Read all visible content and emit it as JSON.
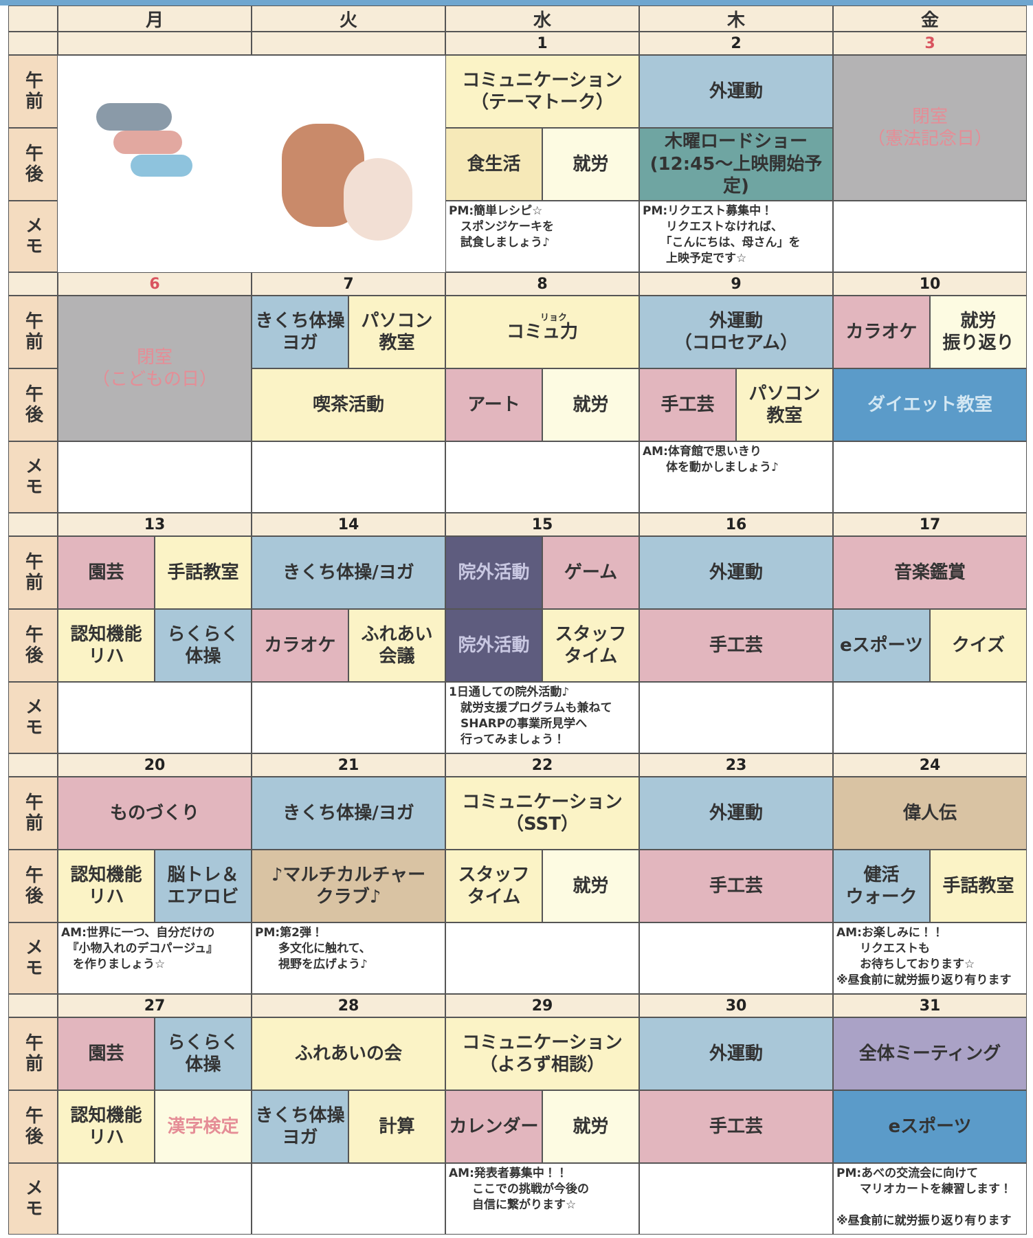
{
  "header": {
    "weekdays": [
      "月",
      "火",
      "水",
      "木",
      "金"
    ],
    "row_labels": [
      "午前",
      "午後",
      "メモ"
    ]
  },
  "weeks": [
    {
      "dates": [
        null,
        null,
        1,
        2,
        3
      ],
      "date_colors": [
        "#222",
        "#222",
        "#222",
        "#222",
        "#d9545f"
      ],
      "days": [
        {},
        {},
        {
          "am": [
            {
              "text": "コミュニケーション\n（テーマトーク）",
              "color": "#fbf3c6"
            }
          ],
          "pm": [
            {
              "text": "食生活",
              "color": "#f6e9b8"
            },
            {
              "text": "就労",
              "color": "#fdfbe2"
            }
          ],
          "memo": "PM:簡単レシピ☆\n　スポンジケーキを\n　試食しましょう♪"
        },
        {
          "am": [
            {
              "text": "外運動",
              "color": "#a9c7d8"
            }
          ],
          "pm": [
            {
              "text": "木曜ロードショー\n(12:45～上映開始予定)",
              "color": "#6fa5a2"
            }
          ],
          "memo": "PM:リクエスト募集中！\n　　リクエストなければ、\n　　「こんにちは、母さん」を\n　　上映予定です☆"
        },
        {
          "closed": {
            "text": "閉室\n（憲法記念日）",
            "color": "#b4b3b4",
            "text_color": "#e58d96"
          }
        }
      ]
    },
    {
      "dates": [
        6,
        7,
        8,
        9,
        10
      ],
      "date_colors": [
        "#d9545f",
        "#222",
        "#222",
        "#222",
        "#222"
      ],
      "days": [
        {
          "closed": {
            "text": "閉室\n（こどもの日）",
            "color": "#b4b3b4",
            "text_color": "#e58d96"
          }
        },
        {
          "am": [
            {
              "text": "きくち体操\nヨガ",
              "color": "#a9c7d8"
            },
            {
              "text": "パソコン\n教室",
              "color": "#fbf3c6"
            }
          ],
          "pm": [
            {
              "text": "喫茶活動",
              "color": "#fbf3c6"
            }
          ]
        },
        {
          "am": [
            {
              "text": "コミュ力",
              "ruby": "リョク",
              "color": "#fbf3c6"
            }
          ],
          "pm": [
            {
              "text": "アート",
              "color": "#e2b6be"
            },
            {
              "text": "就労",
              "color": "#fdfbe2"
            }
          ]
        },
        {
          "am": [
            {
              "text": "外運動\n（コロセアム）",
              "color": "#a9c7d8"
            }
          ],
          "pm": [
            {
              "text": "手工芸",
              "color": "#e2b6be"
            },
            {
              "text": "パソコン\n教室",
              "color": "#fbf3c6"
            }
          ],
          "memo": "AM:体育館で思いきり\n　　体を動かしましょう♪"
        },
        {
          "am": [
            {
              "text": "カラオケ",
              "color": "#e2b6be"
            },
            {
              "text": "就労\n振り返り",
              "color": "#fdfbe2"
            }
          ],
          "pm": [
            {
              "text": "ダイエット教室",
              "color": "#5b9bc9",
              "text_color": "#d3e7f3"
            }
          ]
        }
      ]
    },
    {
      "dates": [
        13,
        14,
        15,
        16,
        17
      ],
      "date_colors": [
        "#222",
        "#222",
        "#222",
        "#222",
        "#222"
      ],
      "days": [
        {
          "am": [
            {
              "text": "園芸",
              "color": "#e2b6be"
            },
            {
              "text": "手話教室",
              "color": "#fbf3c6"
            }
          ],
          "pm": [
            {
              "text": "認知機能\nリハ",
              "color": "#fbf3c6"
            },
            {
              "text": "らくらく\n体操",
              "color": "#a9c7d8"
            }
          ]
        },
        {
          "am": [
            {
              "text": "きくち体操/ヨガ",
              "color": "#a9c7d8"
            }
          ],
          "pm": [
            {
              "text": "カラオケ",
              "color": "#e2b6be"
            },
            {
              "text": "ふれあい\n会議",
              "color": "#fbf3c6"
            }
          ]
        },
        {
          "am": [
            {
              "text": "院外活動",
              "color": "#5e5c7e",
              "text_color": "#c9c8e2"
            },
            {
              "text": "ゲーム",
              "color": "#e2b6be"
            }
          ],
          "pm": [
            {
              "text": "院外活動",
              "color": "#5e5c7e",
              "text_color": "#c9c8e2"
            },
            {
              "text": "スタッフ\nタイム",
              "color": "#fbf3c6"
            }
          ],
          "memo": "1日通しての院外活動♪\n　就労支援プログラムも兼ねて\n　SHARPの事業所見学へ\n　行ってみましょう！"
        },
        {
          "am": [
            {
              "text": "外運動",
              "color": "#a9c7d8"
            }
          ],
          "pm": [
            {
              "text": "手工芸",
              "color": "#e2b6be"
            }
          ]
        },
        {
          "am": [
            {
              "text": "音楽鑑賞",
              "color": "#e2b6be"
            }
          ],
          "pm": [
            {
              "text": "eスポーツ",
              "color": "#a9c7d8"
            },
            {
              "text": "クイズ",
              "color": "#fbf3c6"
            }
          ]
        }
      ]
    },
    {
      "dates": [
        20,
        21,
        22,
        23,
        24
      ],
      "date_colors": [
        "#222",
        "#222",
        "#222",
        "#222",
        "#222"
      ],
      "days": [
        {
          "am": [
            {
              "text": "ものづくり",
              "color": "#e2b6be"
            }
          ],
          "pm": [
            {
              "text": "認知機能\nリハ",
              "color": "#fbf3c6"
            },
            {
              "text": "脳トレ＆\nエアロビ",
              "color": "#a9c7d8"
            }
          ],
          "memo": "AM:世界に一つ、自分だけの\n　『小物入れのデコパージュ』\n　を作りましょう☆"
        },
        {
          "am": [
            {
              "text": "きくち体操/ヨガ",
              "color": "#a9c7d8"
            }
          ],
          "pm": [
            {
              "text": "♪マルチカルチャー\nクラブ♪",
              "color": "#d9c3a3"
            }
          ],
          "memo": "PM:第2弾！\n　　多文化に触れて、\n　　視野を広げよう♪"
        },
        {
          "am": [
            {
              "text": "コミュニケーション\n（SST）",
              "color": "#fbf3c6"
            }
          ],
          "pm": [
            {
              "text": "スタッフ\nタイム",
              "color": "#fbf3c6"
            },
            {
              "text": "就労",
              "color": "#fdfbe2"
            }
          ]
        },
        {
          "am": [
            {
              "text": "外運動",
              "color": "#a9c7d8"
            }
          ],
          "pm": [
            {
              "text": "手工芸",
              "color": "#e2b6be"
            }
          ]
        },
        {
          "am": [
            {
              "text": "偉人伝",
              "color": "#d9c3a3"
            }
          ],
          "pm": [
            {
              "text": "健活\nウォーク",
              "color": "#a9c7d8"
            },
            {
              "text": "手話教室",
              "color": "#fbf3c6"
            }
          ],
          "memo": "AM:お楽しみに！！\n　　リクエストも\n　　お待ちしております☆\n※昼食前に就労振り返り有ります"
        }
      ]
    },
    {
      "dates": [
        27,
        28,
        29,
        30,
        31
      ],
      "date_colors": [
        "#222",
        "#222",
        "#222",
        "#222",
        "#222"
      ],
      "days": [
        {
          "am": [
            {
              "text": "園芸",
              "color": "#e2b6be"
            },
            {
              "text": "らくらく\n体操",
              "color": "#a9c7d8"
            }
          ],
          "pm": [
            {
              "text": "認知機能\nリハ",
              "color": "#fbf3c6"
            },
            {
              "text": "漢字検定",
              "color": "#fdfbe2",
              "text_color": "#e58d96"
            }
          ]
        },
        {
          "am": [
            {
              "text": "ふれあいの会",
              "color": "#fbf3c6"
            }
          ],
          "pm": [
            {
              "text": "きくち体操\nヨガ",
              "color": "#a9c7d8"
            },
            {
              "text": "計算",
              "color": "#fbf3c6"
            }
          ]
        },
        {
          "am": [
            {
              "text": "コミュニケーション\n（よろず相談）",
              "color": "#fbf3c6"
            }
          ],
          "pm": [
            {
              "text": "カレンダー",
              "color": "#e2b6be"
            },
            {
              "text": "就労",
              "color": "#fdfbe2"
            }
          ],
          "memo": "AM:発表者募集中！！\n　　ここでの挑戦が今後の\n　　自信に繋がります☆"
        },
        {
          "am": [
            {
              "text": "外運動",
              "color": "#a9c7d8"
            }
          ],
          "pm": [
            {
              "text": "手工芸",
              "color": "#e2b6be"
            }
          ]
        },
        {
          "am": [
            {
              "text": "全体ミーティング",
              "color": "#aaa2c6"
            }
          ],
          "pm": [
            {
              "text": "eスポーツ",
              "color": "#5b9bc9"
            }
          ],
          "memo": "PM:あべの交流会に向けて\n　　マリオカートを練習します！\n\n※昼食前に就労振り返り有ります"
        }
      ]
    }
  ]
}
